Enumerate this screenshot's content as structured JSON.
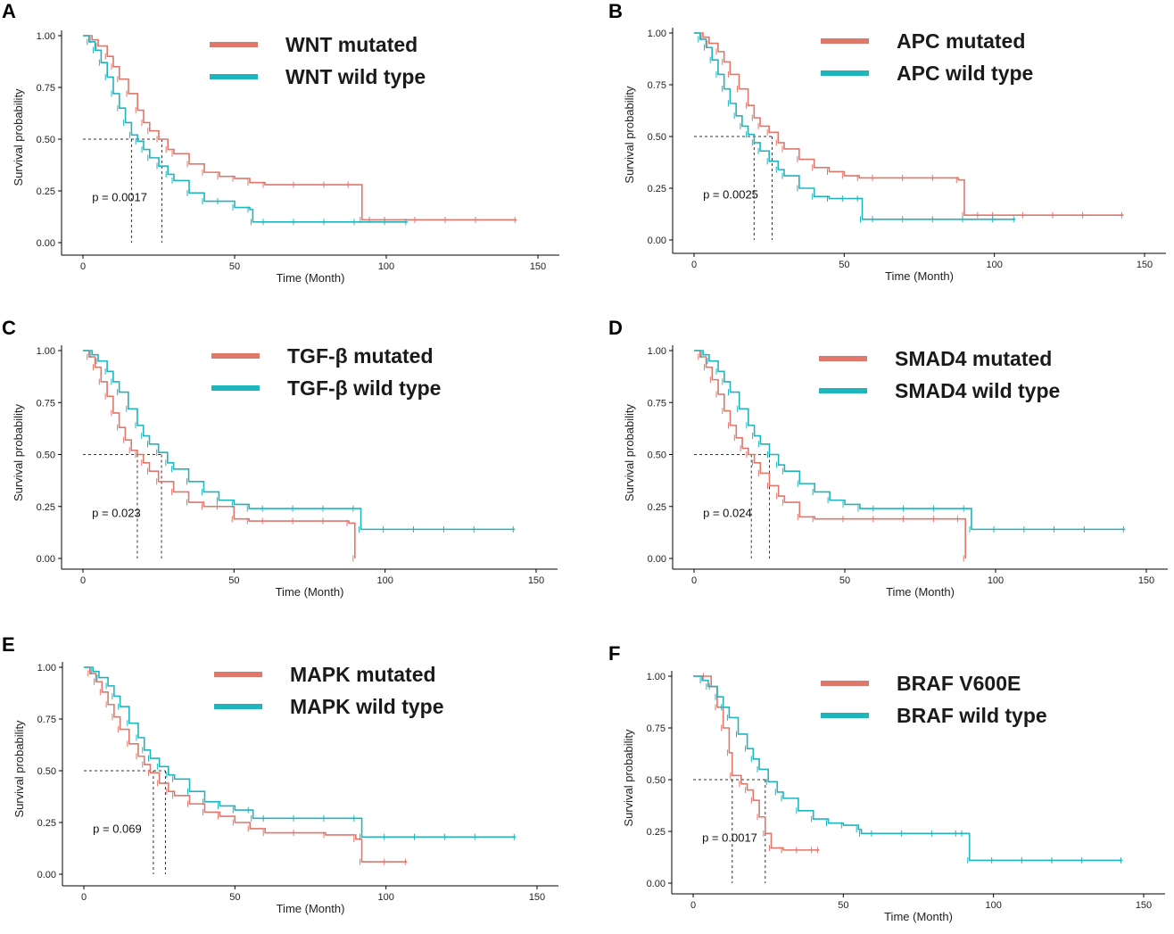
{
  "colors": {
    "mutated": "#e0776b",
    "wild": "#1fb5bd"
  },
  "chart_data": [
    {
      "type": "line",
      "panel": "A",
      "title": "",
      "xlabel": "Time (Month)",
      "ylabel": "Survival probability",
      "xlim": [
        0,
        150
      ],
      "ylim": [
        0,
        1
      ],
      "xticks": [
        "0",
        "50",
        "100",
        "150"
      ],
      "yticks": [
        "0.00",
        "0.25",
        "0.50",
        "0.75",
        "1.00"
      ],
      "pvalue": "p = 0.0017",
      "medians": [
        16,
        26
      ],
      "series": [
        {
          "name": "WNT mutated",
          "color_key": "mutated",
          "x": [
            0,
            3,
            5,
            8,
            10,
            12,
            15,
            18,
            20,
            22,
            25,
            28,
            30,
            35,
            40,
            45,
            50,
            55,
            60,
            70,
            80,
            88,
            92,
            95,
            100,
            110,
            120,
            130,
            143
          ],
          "y": [
            1,
            0.98,
            0.95,
            0.9,
            0.85,
            0.79,
            0.72,
            0.64,
            0.58,
            0.54,
            0.5,
            0.45,
            0.43,
            0.38,
            0.34,
            0.32,
            0.31,
            0.29,
            0.28,
            0.28,
            0.28,
            0.28,
            0.11,
            0.11,
            0.11,
            0.11,
            0.11,
            0.11,
            0.11
          ]
        },
        {
          "name": "WNT wild type",
          "color_key": "wild",
          "x": [
            0,
            2,
            4,
            6,
            8,
            10,
            12,
            14,
            16,
            18,
            20,
            22,
            25,
            28,
            30,
            35,
            40,
            45,
            50,
            55,
            56,
            60,
            70,
            80,
            90,
            100,
            107
          ],
          "y": [
            1,
            0.97,
            0.93,
            0.87,
            0.8,
            0.72,
            0.65,
            0.58,
            0.52,
            0.49,
            0.45,
            0.41,
            0.37,
            0.33,
            0.3,
            0.24,
            0.2,
            0.2,
            0.17,
            0.16,
            0.1,
            0.1,
            0.1,
            0.1,
            0.1,
            0.1,
            0.1
          ]
        }
      ]
    },
    {
      "type": "line",
      "panel": "B",
      "title": "",
      "xlabel": "Time (Month)",
      "ylabel": "Survival probability",
      "xlim": [
        0,
        150
      ],
      "ylim": [
        0,
        1
      ],
      "xticks": [
        "0",
        "50",
        "100",
        "150"
      ],
      "yticks": [
        "0.00",
        "0.25",
        "0.50",
        "0.75",
        "1.00"
      ],
      "pvalue": "p = 0.0025",
      "medians": [
        20,
        26
      ],
      "series": [
        {
          "name": "APC mutated",
          "color_key": "mutated",
          "x": [
            0,
            3,
            5,
            8,
            10,
            12,
            15,
            18,
            20,
            22,
            25,
            28,
            30,
            35,
            40,
            45,
            50,
            55,
            60,
            70,
            80,
            88,
            90,
            95,
            100,
            110,
            120,
            130,
            143
          ],
          "y": [
            1,
            0.98,
            0.95,
            0.91,
            0.86,
            0.8,
            0.73,
            0.65,
            0.59,
            0.55,
            0.52,
            0.47,
            0.44,
            0.39,
            0.35,
            0.33,
            0.31,
            0.3,
            0.3,
            0.3,
            0.3,
            0.29,
            0.12,
            0.12,
            0.12,
            0.12,
            0.12,
            0.12,
            0.12
          ]
        },
        {
          "name": "APC wild type",
          "color_key": "wild",
          "x": [
            0,
            2,
            4,
            6,
            8,
            10,
            12,
            14,
            16,
            18,
            20,
            22,
            25,
            28,
            30,
            35,
            40,
            45,
            50,
            55,
            56,
            60,
            70,
            80,
            90,
            100,
            107
          ],
          "y": [
            1,
            0.97,
            0.93,
            0.87,
            0.8,
            0.73,
            0.66,
            0.6,
            0.55,
            0.51,
            0.47,
            0.43,
            0.38,
            0.34,
            0.31,
            0.25,
            0.21,
            0.2,
            0.2,
            0.2,
            0.1,
            0.1,
            0.1,
            0.1,
            0.1,
            0.1,
            0.1
          ]
        }
      ]
    },
    {
      "type": "line",
      "panel": "C",
      "title": "",
      "xlabel": "Time (Month)",
      "ylabel": "Survival probability",
      "xlim": [
        0,
        150
      ],
      "ylim": [
        0,
        1
      ],
      "xticks": [
        "0",
        "50",
        "100",
        "150"
      ],
      "yticks": [
        "0.00",
        "0.25",
        "0.50",
        "0.75",
        "1.00"
      ],
      "pvalue": "p = 0.023",
      "medians": [
        18,
        26
      ],
      "series": [
        {
          "name": "TGF-β mutated",
          "color_key": "mutated",
          "x": [
            0,
            2,
            4,
            6,
            8,
            10,
            12,
            14,
            16,
            18,
            20,
            22,
            25,
            30,
            35,
            40,
            45,
            50,
            55,
            60,
            70,
            80,
            88,
            90
          ],
          "y": [
            1,
            0.97,
            0.92,
            0.85,
            0.78,
            0.7,
            0.63,
            0.57,
            0.52,
            0.5,
            0.46,
            0.42,
            0.37,
            0.32,
            0.27,
            0.25,
            0.25,
            0.19,
            0.18,
            0.18,
            0.18,
            0.18,
            0.17,
            0
          ]
        },
        {
          "name": "TGF-β wild type",
          "color_key": "wild",
          "x": [
            0,
            3,
            5,
            8,
            10,
            12,
            15,
            18,
            20,
            22,
            25,
            28,
            30,
            35,
            40,
            45,
            50,
            55,
            60,
            70,
            80,
            90,
            92,
            100,
            110,
            120,
            130,
            143
          ],
          "y": [
            1,
            0.98,
            0.95,
            0.9,
            0.85,
            0.8,
            0.72,
            0.64,
            0.59,
            0.55,
            0.51,
            0.46,
            0.43,
            0.37,
            0.32,
            0.28,
            0.26,
            0.24,
            0.24,
            0.24,
            0.24,
            0.24,
            0.14,
            0.14,
            0.14,
            0.14,
            0.14,
            0.14
          ]
        }
      ]
    },
    {
      "type": "line",
      "panel": "D",
      "title": "",
      "xlabel": "Time (Month)",
      "ylabel": "Survival probability",
      "xlim": [
        0,
        150
      ],
      "ylim": [
        0,
        1
      ],
      "xticks": [
        "0",
        "50",
        "100",
        "150"
      ],
      "yticks": [
        "0.00",
        "0.25",
        "0.50",
        "0.75",
        "1.00"
      ],
      "pvalue": "p = 0.024",
      "medians": [
        19,
        25
      ],
      "series": [
        {
          "name": "SMAD4 mutated",
          "color_key": "mutated",
          "x": [
            0,
            2,
            4,
            6,
            8,
            10,
            12,
            14,
            16,
            18,
            20,
            22,
            25,
            28,
            30,
            35,
            40,
            50,
            60,
            70,
            80,
            88,
            90
          ],
          "y": [
            1,
            0.97,
            0.92,
            0.86,
            0.79,
            0.71,
            0.64,
            0.58,
            0.53,
            0.5,
            0.46,
            0.41,
            0.35,
            0.3,
            0.27,
            0.2,
            0.19,
            0.19,
            0.19,
            0.19,
            0.19,
            0.19,
            0
          ]
        },
        {
          "name": "SMAD4  wild type",
          "color_key": "wild",
          "x": [
            0,
            3,
            5,
            8,
            10,
            12,
            15,
            18,
            20,
            22,
            25,
            28,
            30,
            35,
            40,
            45,
            50,
            55,
            60,
            70,
            80,
            90,
            92,
            100,
            110,
            120,
            130,
            143
          ],
          "y": [
            1,
            0.98,
            0.95,
            0.9,
            0.85,
            0.8,
            0.72,
            0.64,
            0.59,
            0.55,
            0.5,
            0.45,
            0.42,
            0.36,
            0.32,
            0.28,
            0.26,
            0.24,
            0.24,
            0.24,
            0.24,
            0.24,
            0.14,
            0.14,
            0.14,
            0.14,
            0.14,
            0.14
          ]
        }
      ]
    },
    {
      "type": "line",
      "panel": "E",
      "title": "",
      "xlabel": "Time (Month)",
      "ylabel": "Survival probability",
      "xlim": [
        0,
        150
      ],
      "ylim": [
        0,
        1
      ],
      "xticks": [
        "0",
        "50",
        "100",
        "150"
      ],
      "yticks": [
        "0.00",
        "0.25",
        "0.50",
        "0.75",
        "1.00"
      ],
      "pvalue": "p = 0.069",
      "medians": [
        23,
        27
      ],
      "series": [
        {
          "name": "MAPK mutated",
          "color_key": "mutated",
          "x": [
            0,
            2,
            4,
            6,
            8,
            10,
            12,
            15,
            18,
            20,
            22,
            25,
            28,
            30,
            35,
            40,
            45,
            50,
            55,
            60,
            70,
            80,
            90,
            92,
            100,
            107
          ],
          "y": [
            1,
            0.97,
            0.93,
            0.88,
            0.82,
            0.76,
            0.7,
            0.63,
            0.57,
            0.53,
            0.49,
            0.44,
            0.4,
            0.38,
            0.34,
            0.3,
            0.28,
            0.25,
            0.22,
            0.2,
            0.2,
            0.19,
            0.17,
            0.06,
            0.06,
            0.06
          ]
        },
        {
          "name": "MAPK wild type",
          "color_key": "wild",
          "x": [
            0,
            3,
            5,
            8,
            10,
            12,
            15,
            18,
            20,
            22,
            25,
            28,
            30,
            35,
            40,
            45,
            50,
            55,
            56,
            60,
            70,
            80,
            90,
            92,
            100,
            110,
            120,
            130,
            143
          ],
          "y": [
            1,
            0.98,
            0.95,
            0.91,
            0.86,
            0.81,
            0.73,
            0.66,
            0.6,
            0.56,
            0.52,
            0.48,
            0.46,
            0.4,
            0.35,
            0.33,
            0.31,
            0.31,
            0.27,
            0.27,
            0.27,
            0.27,
            0.27,
            0.18,
            0.18,
            0.18,
            0.18,
            0.18,
            0.18
          ]
        }
      ]
    },
    {
      "type": "line",
      "panel": "F",
      "title": "",
      "xlabel": "Time (Month)",
      "ylabel": "Survival probability",
      "xlim": [
        0,
        150
      ],
      "ylim": [
        0,
        1
      ],
      "xticks": [
        "0",
        "50",
        "100",
        "150"
      ],
      "yticks": [
        "0.00",
        "0.25",
        "0.50",
        "0.75",
        "1.00"
      ],
      "pvalue": "p = 0.0017",
      "medians": [
        13,
        24
      ],
      "series": [
        {
          "name": "BRAF V600E",
          "color_key": "mutated",
          "x": [
            0,
            4,
            6,
            8,
            10,
            12,
            13,
            16,
            18,
            20,
            22,
            24,
            26,
            30,
            35,
            40,
            42
          ],
          "y": [
            1,
            1,
            0.95,
            0.85,
            0.75,
            0.63,
            0.52,
            0.48,
            0.45,
            0.4,
            0.32,
            0.24,
            0.17,
            0.16,
            0.16,
            0.16,
            0.16
          ]
        },
        {
          "name": "BRAF wild type",
          "color_key": "wild",
          "x": [
            0,
            3,
            5,
            8,
            10,
            12,
            15,
            18,
            20,
            22,
            25,
            28,
            30,
            35,
            40,
            45,
            50,
            55,
            56,
            60,
            70,
            80,
            88,
            90,
            92,
            100,
            110,
            120,
            130,
            143
          ],
          "y": [
            1,
            0.98,
            0.95,
            0.9,
            0.85,
            0.8,
            0.72,
            0.65,
            0.6,
            0.55,
            0.49,
            0.44,
            0.41,
            0.35,
            0.31,
            0.29,
            0.28,
            0.26,
            0.24,
            0.24,
            0.24,
            0.24,
            0.24,
            0.24,
            0.11,
            0.11,
            0.11,
            0.11,
            0.11,
            0.11
          ]
        }
      ]
    }
  ]
}
